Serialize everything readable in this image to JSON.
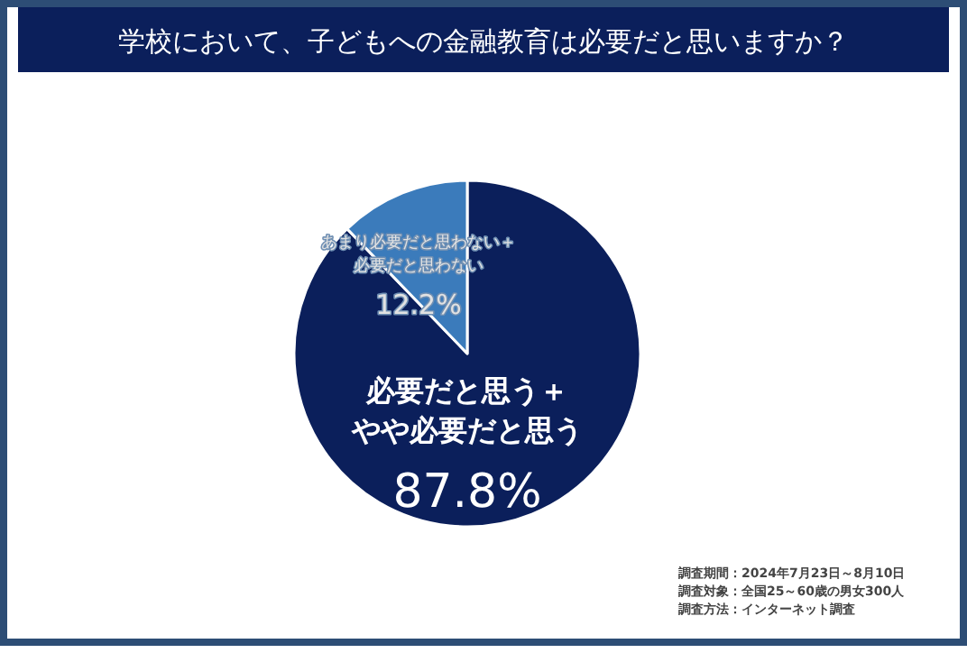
{
  "chart_data": {
    "type": "pie",
    "title": "学校において、子どもへの金融教育は必要だと思いますか？",
    "categories": [
      "必要だと思う＋やや必要だと思う",
      "あまり必要だと思わない＋必要だと思わない"
    ],
    "values": [
      87.8,
      12.2
    ],
    "colors": [
      "#0b1f5b",
      "#3b7bbb"
    ],
    "value_labels": [
      "87.8%",
      "12.2%"
    ],
    "legend": false,
    "annotations": [
      "調査期間：2024年7月23日～8月10日",
      "調査対象：全国25～60歳の男女300人",
      "調査方法：インターネット調査"
    ]
  }
}
